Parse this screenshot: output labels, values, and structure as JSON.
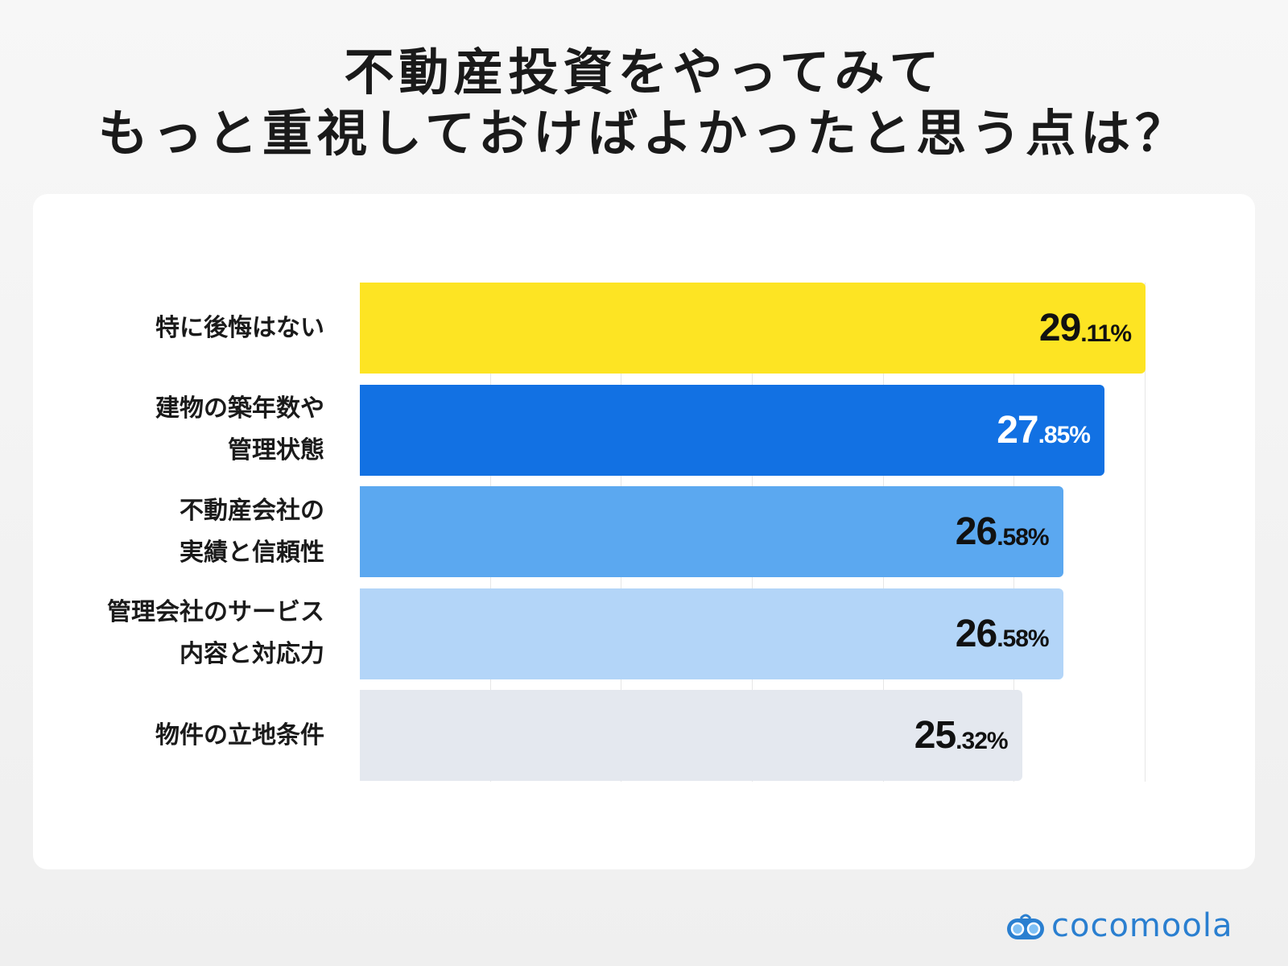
{
  "title": {
    "line1": "不動産投資をやってみて",
    "line2": "もっと重視しておけばよかったと思う点は？"
  },
  "chart_data": {
    "type": "bar",
    "orientation": "horizontal",
    "title": "不動産投資をやってみて もっと重視しておけばよかったと思う点は？",
    "categories": [
      [
        "特に後悔はない"
      ],
      [
        "建物の築年数や",
        "管理状態"
      ],
      [
        "不動産会社の",
        "実績と信頼性"
      ],
      [
        "管理会社のサービス",
        "内容と対応力"
      ],
      [
        "物件の立地条件"
      ]
    ],
    "values": [
      29.11,
      27.85,
      26.58,
      26.58,
      25.32
    ],
    "value_labels": [
      {
        "int": "29",
        "dec": ".11%"
      },
      {
        "int": "27",
        "dec": ".85%"
      },
      {
        "int": "26",
        "dec": ".58%"
      },
      {
        "int": "26",
        "dec": ".58%"
      },
      {
        "int": "25",
        "dec": ".32%"
      }
    ],
    "unit": "%",
    "colors": [
      "#fde423",
      "#1271e3",
      "#5ba8f0",
      "#b3d5f8",
      "#e4e8ef"
    ],
    "label_colors": [
      "#111111",
      "#ffffff",
      "#111111",
      "#111111",
      "#111111"
    ],
    "xlim": [
      5,
      29.11
    ],
    "grid": true
  },
  "logo": {
    "text": "cocomoola",
    "color": "#2a7fd0"
  }
}
